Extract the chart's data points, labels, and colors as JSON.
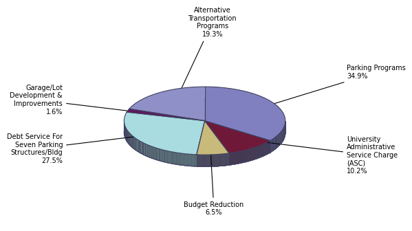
{
  "sizes": [
    34.9,
    10.2,
    6.5,
    27.5,
    1.6,
    19.3
  ],
  "colors": [
    "#8080C0",
    "#701838",
    "#C8BA7A",
    "#A8DCE0",
    "#601860",
    "#9090C8"
  ],
  "edge_color": "#404060",
  "background_color": "#FFFFFF",
  "text_color": "#000000",
  "font_size": 7.0,
  "startangle": 90,
  "labels": [
    "Parking Programs\n34.9%",
    "University\nAdministrative\nService Charge\n(ASC)\n10.2%",
    "Budget Reduction\n6.5%",
    "Debt Service For\nSeven Parking\nStructures/Bldg\n27.5%",
    "Garage/Lot\nDevelopment &\nImprovements\n1.6%",
    "Alternative\nTransportation\nPrograms\n19.3%"
  ]
}
